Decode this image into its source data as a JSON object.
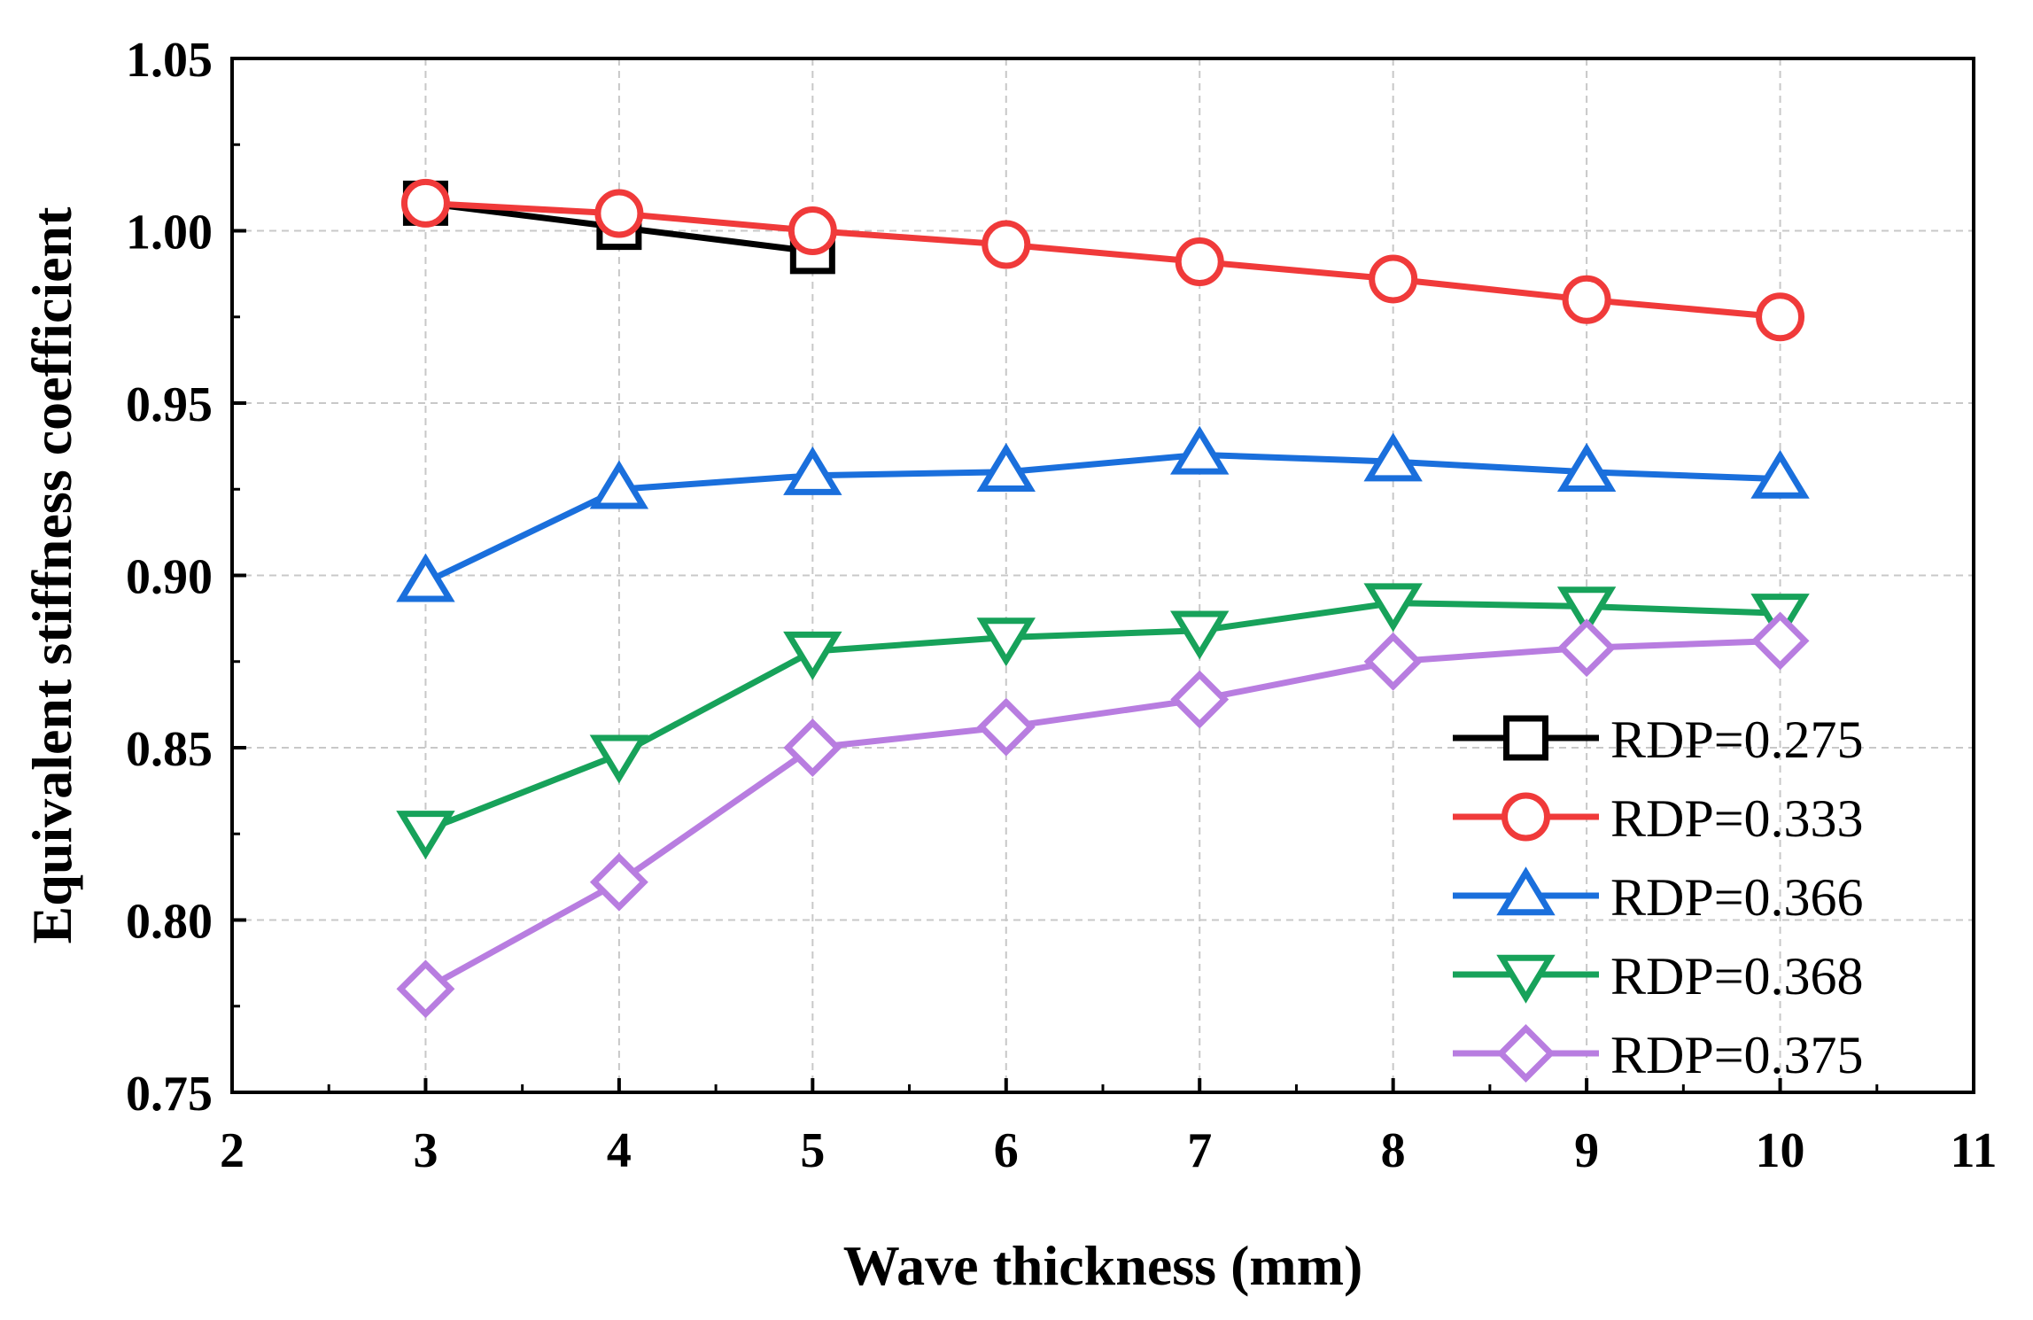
{
  "chart_data": {
    "type": "line",
    "xlabel": "Wave thickness (mm)",
    "ylabel": "Equivalent stiffness coefficient",
    "xlim": [
      2,
      11
    ],
    "ylim": [
      0.75,
      1.05
    ],
    "xticks": [
      2,
      3,
      4,
      5,
      6,
      7,
      8,
      9,
      10,
      11
    ],
    "xtick_labels": [
      "2",
      "3",
      "4",
      "5",
      "6",
      "7",
      "8",
      "9",
      "10",
      "11"
    ],
    "yticks": [
      0.75,
      0.8,
      0.85,
      0.9,
      0.95,
      1.0,
      1.05
    ],
    "ytick_labels": [
      "0.75",
      "0.80",
      "0.85",
      "0.90",
      "0.95",
      "1.00",
      "1.05"
    ],
    "grid": true,
    "legend_position": "bottom-right",
    "series": [
      {
        "name": "RDP=0.275",
        "color": "#000000",
        "marker": "square",
        "x": [
          3,
          4,
          5
        ],
        "values": [
          1.008,
          1.001,
          0.994
        ]
      },
      {
        "name": "RDP=0.333",
        "color": "#f03a3a",
        "marker": "circle",
        "x": [
          3,
          4,
          5,
          6,
          7,
          8,
          9,
          10
        ],
        "values": [
          1.008,
          1.005,
          1.0,
          0.996,
          0.991,
          0.986,
          0.98,
          0.975
        ]
      },
      {
        "name": "RDP=0.366",
        "color": "#1a6fdc",
        "marker": "triangle-up",
        "x": [
          3,
          4,
          5,
          6,
          7,
          8,
          9,
          10
        ],
        "values": [
          0.898,
          0.925,
          0.929,
          0.93,
          0.935,
          0.933,
          0.93,
          0.928
        ]
      },
      {
        "name": "RDP=0.368",
        "color": "#17a25a",
        "marker": "triangle-down",
        "x": [
          3,
          4,
          5,
          6,
          7,
          8,
          9,
          10
        ],
        "values": [
          0.826,
          0.848,
          0.878,
          0.882,
          0.884,
          0.892,
          0.891,
          0.889
        ]
      },
      {
        "name": "RDP=0.375",
        "color": "#b87de0",
        "marker": "diamond",
        "x": [
          3,
          4,
          5,
          6,
          7,
          8,
          9,
          10
        ],
        "values": [
          0.78,
          0.811,
          0.85,
          0.856,
          0.864,
          0.875,
          0.879,
          0.881
        ]
      }
    ]
  }
}
